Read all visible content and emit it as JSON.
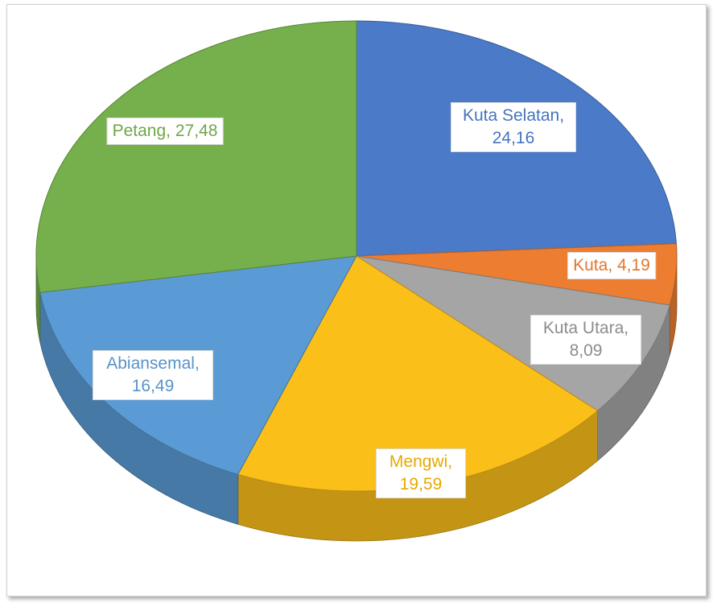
{
  "chart_data": {
    "type": "pie",
    "values": [
      24.16,
      4.19,
      8.09,
      19.59,
      16.49,
      27.48
    ],
    "value_labels": [
      "Kuta Selatan, 24,16",
      "Kuta, 4,19",
      "Kuta Utara, 8,09",
      "Mengwi, 19,59",
      "Abiansemal, 16,49",
      "Petang, 27,48"
    ],
    "colors": [
      "#4a7ac8",
      "#ed7d31",
      "#a5a5a5",
      "#fbbf1a",
      "#5b9bd5",
      "#75b04c"
    ]
  }
}
